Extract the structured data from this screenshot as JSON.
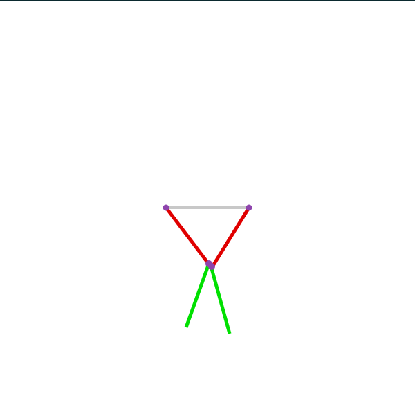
{
  "top_bar": {
    "text": ""
  },
  "scene": {
    "colors": {
      "background": "#ffffff",
      "top_bar": "#0b2a2f",
      "base_link": "#c8c8c8",
      "arms": "#e00000",
      "legs": "#00e000",
      "joints": "#8e44ad"
    }
  }
}
